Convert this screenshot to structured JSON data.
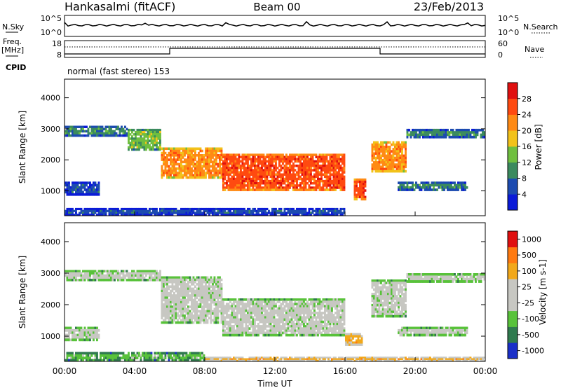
{
  "header": {
    "station": "Hankasalmi (fitACF)",
    "beam": "Beam 00",
    "date": "23/Feb/2013"
  },
  "noise_panel": {
    "left_label": "N.Sky",
    "left_ticks": [
      "10^5",
      "10^0"
    ],
    "right_label": "N.Search",
    "right_ticks": [
      "10^5",
      "10^0"
    ]
  },
  "freq_panel": {
    "left_label_1": "Freq.",
    "left_label_2": "[MHz]",
    "left_ticks": [
      "18",
      "8"
    ],
    "right_label": "Nave",
    "right_ticks": [
      "60",
      "0"
    ],
    "cpid_label": "CPID",
    "cpid_value": "normal (fast stereo) 153"
  },
  "colors": {
    "power_scale": [
      "#0a1ad8",
      "#1c4bb0",
      "#3b8a5e",
      "#6fbf3f",
      "#f2c21a",
      "#ff8a14",
      "#ff4a10",
      "#e01010"
    ],
    "velocity_scale": [
      "#1a2fc8",
      "#2f7a4e",
      "#58c23a",
      "#c7c7c2",
      "#c7c7c2",
      "#f2a81a",
      "#ff7a10",
      "#e01010"
    ]
  },
  "chart_data": [
    {
      "type": "heatmap",
      "name": "power",
      "xlabel": "",
      "ylabel": "Slant Range [km]",
      "x_ticks": [
        "00:00",
        "04:00",
        "08:00",
        "12:00",
        "16:00",
        "20:00",
        "00:00"
      ],
      "y_ticks": [
        "1000",
        "2000",
        "3000",
        "4000"
      ],
      "ylim": [
        200,
        4600
      ],
      "colorbar_label": "Power [dB]",
      "colorbar_ticks": [
        "4",
        "8",
        "12",
        "16",
        "20",
        "24",
        "28"
      ],
      "bands": [
        {
          "t0": 0.0,
          "t1": 3.6,
          "r0": 2750,
          "r1": 3100,
          "level": 2
        },
        {
          "t0": 3.6,
          "t1": 5.5,
          "r0": 2300,
          "r1": 3000,
          "level": 3
        },
        {
          "t0": 5.5,
          "t1": 9.0,
          "r0": 1400,
          "r1": 2400,
          "level": 5
        },
        {
          "t0": 9.0,
          "t1": 16.0,
          "r0": 1000,
          "r1": 2200,
          "level": 6
        },
        {
          "t0": 16.5,
          "t1": 17.2,
          "r0": 700,
          "r1": 1400,
          "level": 6
        },
        {
          "t0": 17.5,
          "t1": 19.5,
          "r0": 1600,
          "r1": 2600,
          "level": 5
        },
        {
          "t0": 19.5,
          "t1": 24.0,
          "r0": 2700,
          "r1": 3000,
          "level": 2
        },
        {
          "t0": 0.0,
          "t1": 2.0,
          "r0": 850,
          "r1": 1300,
          "level": 1
        },
        {
          "t0": 19.0,
          "t1": 23.0,
          "r0": 1000,
          "r1": 1300,
          "level": 2
        },
        {
          "t0": 0.0,
          "t1": 16.0,
          "r0": 200,
          "r1": 450,
          "level": 1
        }
      ]
    },
    {
      "type": "heatmap",
      "name": "velocity",
      "xlabel": "Time UT",
      "ylabel": "Slant Range [km]",
      "x_ticks": [
        "00:00",
        "04:00",
        "08:00",
        "12:00",
        "16:00",
        "20:00",
        "00:00"
      ],
      "y_ticks": [
        "1000",
        "2000",
        "3000",
        "4000"
      ],
      "ylim": [
        200,
        4600
      ],
      "colorbar_label": "Velocity [m s-1]",
      "colorbar_ticks": [
        "1000",
        "500",
        "100",
        "25",
        "-25",
        "-100",
        "-500",
        "-1000"
      ],
      "bands": [
        {
          "t0": 0.0,
          "t1": 5.5,
          "r0": 2750,
          "r1": 3100,
          "level": 3
        },
        {
          "t0": 5.5,
          "t1": 9.0,
          "r0": 1400,
          "r1": 2900,
          "level": 3
        },
        {
          "t0": 9.0,
          "t1": 16.0,
          "r0": 1000,
          "r1": 2200,
          "level": 3
        },
        {
          "t0": 16.0,
          "t1": 17.0,
          "r0": 700,
          "r1": 1100,
          "level": 5
        },
        {
          "t0": 17.5,
          "t1": 19.5,
          "r0": 1600,
          "r1": 2800,
          "level": 3
        },
        {
          "t0": 19.5,
          "t1": 24.0,
          "r0": 2700,
          "r1": 3000,
          "level": 3
        },
        {
          "t0": 0.0,
          "t1": 2.0,
          "r0": 850,
          "r1": 1300,
          "level": 3
        },
        {
          "t0": 19.0,
          "t1": 23.0,
          "r0": 1000,
          "r1": 1300,
          "level": 3
        },
        {
          "t0": 0.0,
          "t1": 8.0,
          "r0": 200,
          "r1": 500,
          "level": 2
        },
        {
          "t0": 8.0,
          "t1": 24.0,
          "r0": 200,
          "r1": 350,
          "level": 5
        }
      ]
    }
  ]
}
